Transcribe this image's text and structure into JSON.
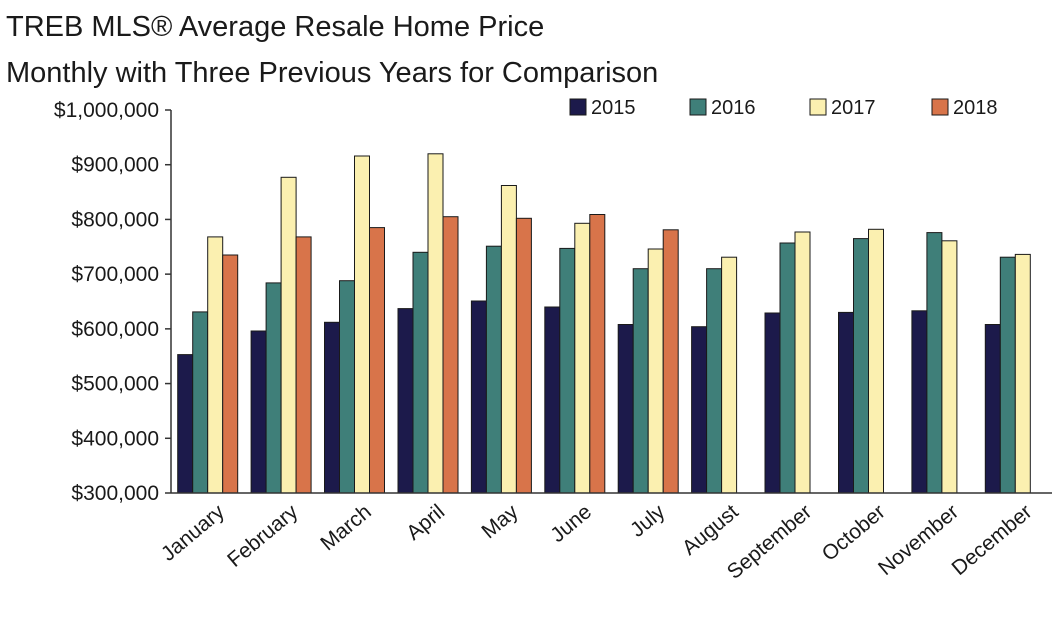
{
  "chart_data": {
    "type": "bar",
    "title": "TREB MLS® Average Resale Home Price",
    "subtitle": "Monthly with Three Previous Years for Comparison",
    "xlabel": "",
    "ylabel": "",
    "ylim": [
      300000,
      1000000
    ],
    "yticks": [
      300000,
      400000,
      500000,
      600000,
      700000,
      800000,
      900000,
      1000000
    ],
    "ytick_labels": [
      "$300,000",
      "$400,000",
      "$500,000",
      "$600,000",
      "$700,000",
      "$800,000",
      "$900,000",
      "$1,000,000"
    ],
    "grid": false,
    "legend_position": "top-right",
    "categories": [
      "January",
      "February",
      "March",
      "April",
      "May",
      "June",
      "July",
      "August",
      "September",
      "October",
      "November",
      "December"
    ],
    "series": [
      {
        "name": "2015",
        "color": "#1c1a4b",
        "values": [
          553000,
          596000,
          612000,
          637000,
          651000,
          640000,
          608000,
          604000,
          629000,
          630000,
          633000,
          608000
        ]
      },
      {
        "name": "2016",
        "color": "#3f7f79",
        "values": [
          631000,
          684000,
          688000,
          740000,
          751000,
          747000,
          710000,
          710000,
          757000,
          765000,
          776000,
          731000
        ]
      },
      {
        "name": "2017",
        "color": "#fbf0b0",
        "values": [
          768000,
          877000,
          916000,
          920000,
          862000,
          793000,
          746000,
          731000,
          777000,
          782000,
          761000,
          736000
        ]
      },
      {
        "name": "2018",
        "color": "#d8744a",
        "values": [
          735000,
          768000,
          785000,
          805000,
          802000,
          809000,
          781000,
          null,
          null,
          null,
          null,
          null
        ]
      }
    ]
  }
}
